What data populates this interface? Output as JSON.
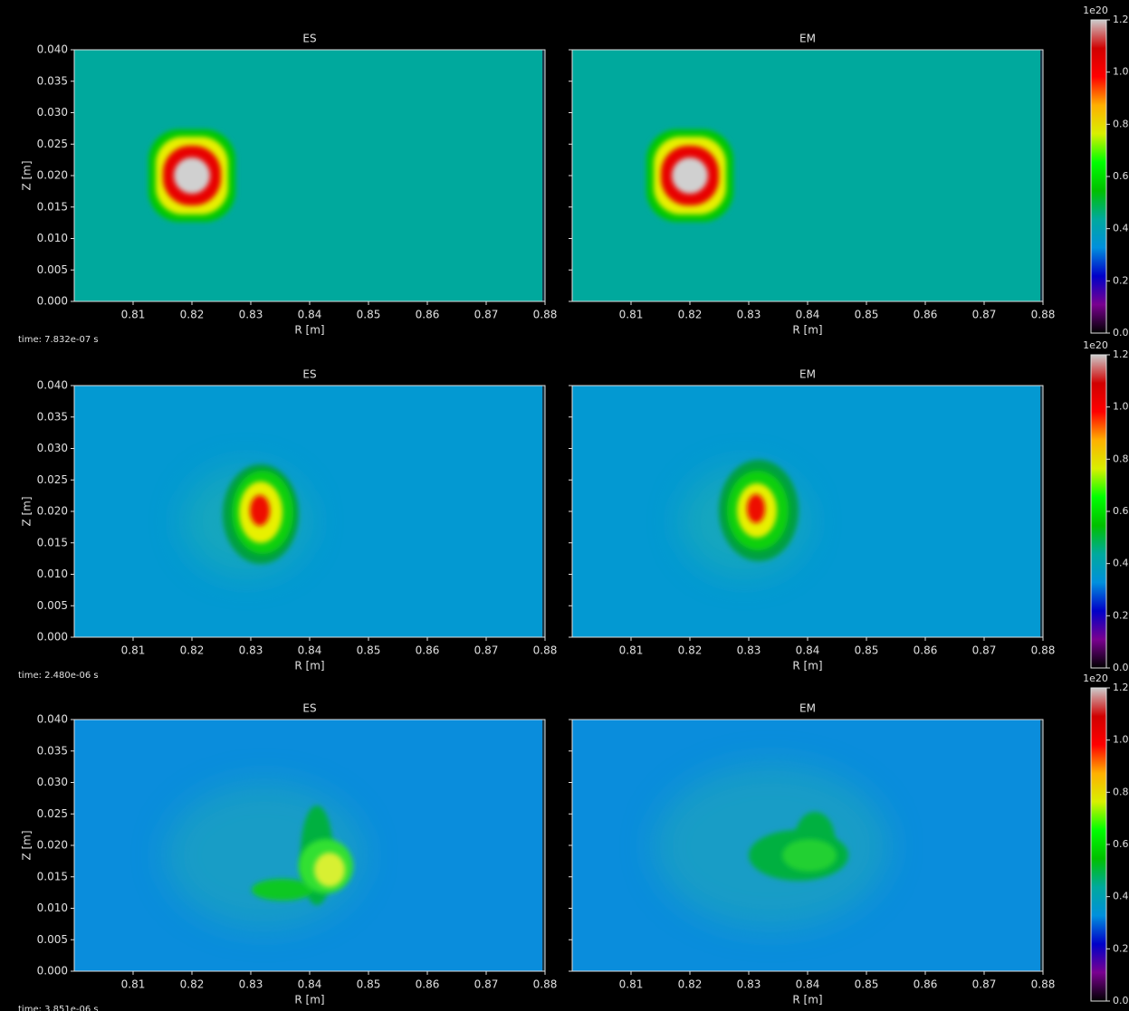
{
  "chart_data": [
    {
      "type": "heatmap",
      "title": "ES",
      "xlabel": "R [m]",
      "ylabel": "Z [m]",
      "annotation": "time: 7.832e-07 s",
      "background": "#00a99d",
      "xlim": [
        0.8,
        0.88
      ],
      "xticks": [
        0.81,
        0.82,
        0.83,
        0.84,
        0.85,
        0.86,
        0.87,
        0.88
      ],
      "ylim": [
        0,
        0.04
      ],
      "yticks": [
        {
          "value": 0,
          "label": "0.000"
        },
        {
          "value": 0.005,
          "label": "0.005"
        },
        {
          "value": 0.01,
          "label": "0.010"
        },
        {
          "value": 0.015,
          "label": "0.015"
        },
        {
          "value": 0.02,
          "label": "0.020"
        },
        {
          "value": 0.025,
          "label": "0.025"
        },
        {
          "value": 0.03,
          "label": "0.030"
        },
        {
          "value": 0.035,
          "label": "0.035"
        },
        {
          "value": 0.04,
          "label": "0.040"
        }
      ]
    },
    {
      "type": "heatmap",
      "title": "EM",
      "xlabel": "R [m]",
      "background": "#00a99d",
      "xlim": [
        0.8,
        0.88
      ],
      "xticks": [
        0.81,
        0.82,
        0.83,
        0.84,
        0.85,
        0.86,
        0.87,
        0.88
      ],
      "ylim": [
        0,
        0.04
      ],
      "yticks": [
        0,
        0.005,
        0.01,
        0.015,
        0.02,
        0.025,
        0.03,
        0.035,
        0.04
      ]
    },
    {
      "type": "heatmap",
      "title": "ES",
      "xlabel": "R [m]",
      "ylabel": "Z [m]",
      "annotation": "time: 2.480e-06 s",
      "background": "#0399d2",
      "xlim": [
        0.8,
        0.88
      ],
      "xticks": [
        0.81,
        0.82,
        0.83,
        0.84,
        0.85,
        0.86,
        0.87,
        0.88
      ],
      "ylim": [
        0,
        0.04
      ],
      "yticks": [
        {
          "value": 0,
          "label": "0.000"
        },
        {
          "value": 0.005,
          "label": "0.005"
        },
        {
          "value": 0.01,
          "label": "0.010"
        },
        {
          "value": 0.015,
          "label": "0.015"
        },
        {
          "value": 0.02,
          "label": "0.020"
        },
        {
          "value": 0.025,
          "label": "0.025"
        },
        {
          "value": 0.03,
          "label": "0.030"
        },
        {
          "value": 0.035,
          "label": "0.035"
        },
        {
          "value": 0.04,
          "label": "0.040"
        }
      ]
    },
    {
      "type": "heatmap",
      "title": "EM",
      "xlabel": "R [m]",
      "background": "#0399d2",
      "xlim": [
        0.8,
        0.88
      ],
      "xticks": [
        0.81,
        0.82,
        0.83,
        0.84,
        0.85,
        0.86,
        0.87,
        0.88
      ],
      "ylim": [
        0,
        0.04
      ],
      "yticks": [
        0,
        0.005,
        0.01,
        0.015,
        0.02,
        0.025,
        0.03,
        0.035,
        0.04
      ]
    },
    {
      "type": "heatmap",
      "title": "ES",
      "xlabel": "R [m]",
      "ylabel": "Z [m]",
      "annotation": "time: 3.851e-06 s",
      "background": "#0a8ddc",
      "xlim": [
        0.8,
        0.88
      ],
      "xticks": [
        0.81,
        0.82,
        0.83,
        0.84,
        0.85,
        0.86,
        0.87,
        0.88
      ],
      "ylim": [
        0,
        0.04
      ],
      "yticks": [
        {
          "value": 0,
          "label": "0.000"
        },
        {
          "value": 0.005,
          "label": "0.005"
        },
        {
          "value": 0.01,
          "label": "0.010"
        },
        {
          "value": 0.015,
          "label": "0.015"
        },
        {
          "value": 0.02,
          "label": "0.020"
        },
        {
          "value": 0.025,
          "label": "0.025"
        },
        {
          "value": 0.03,
          "label": "0.030"
        },
        {
          "value": 0.035,
          "label": "0.035"
        },
        {
          "value": 0.04,
          "label": "0.040"
        }
      ]
    },
    {
      "type": "heatmap",
      "title": "EM",
      "xlabel": "R [m]",
      "background": "#0a8ddc",
      "xlim": [
        0.8,
        0.88
      ],
      "xticks": [
        0.81,
        0.82,
        0.83,
        0.84,
        0.85,
        0.86,
        0.87,
        0.88
      ],
      "ylim": [
        0,
        0.04
      ],
      "yticks": [
        0,
        0.005,
        0.01,
        0.015,
        0.02,
        0.025,
        0.03,
        0.035,
        0.04
      ]
    },
    {
      "type": "colorbar",
      "offset_label": "1e20",
      "colors": [
        "#000000",
        "#7a0090",
        "#0000c8",
        "#0090dd",
        "#00a99d",
        "#00c000",
        "#00ff00",
        "#d8f000",
        "#ffb000",
        "#ff0000",
        "#d00000",
        "#cccccc"
      ],
      "ylim": [
        0,
        1.2
      ],
      "yticks": [
        {
          "value": 0,
          "label": "0.0"
        },
        {
          "value": 0.2,
          "label": "0.2"
        },
        {
          "value": 0.4,
          "label": "0.4"
        },
        {
          "value": 0.6,
          "label": "0.6"
        },
        {
          "value": 0.8,
          "label": "0.8"
        },
        {
          "value": 1.0,
          "label": "1.0"
        },
        {
          "value": 1.2,
          "label": "1.2"
        }
      ]
    },
    {
      "type": "colorbar",
      "offset_label": "1e20",
      "colors": [
        "#000000",
        "#7a0090",
        "#0000c8",
        "#0090dd",
        "#00a99d",
        "#00c000",
        "#00ff00",
        "#d8f000",
        "#ffb000",
        "#ff0000",
        "#d00000",
        "#cccccc"
      ],
      "ylim": [
        0,
        1.2
      ],
      "yticks": [
        {
          "value": 0,
          "label": "0.0"
        },
        {
          "value": 0.2,
          "label": "0.2"
        },
        {
          "value": 0.4,
          "label": "0.4"
        },
        {
          "value": 0.6,
          "label": "0.6"
        },
        {
          "value": 0.8,
          "label": "0.8"
        },
        {
          "value": 1.0,
          "label": "1.0"
        },
        {
          "value": 1.2,
          "label": "1.2"
        }
      ]
    },
    {
      "type": "colorbar",
      "offset_label": "1e20",
      "colors": [
        "#000000",
        "#7a0090",
        "#0000c8",
        "#0090dd",
        "#00a99d",
        "#00c000",
        "#00ff00",
        "#d8f000",
        "#ffb000",
        "#ff0000",
        "#d00000",
        "#cccccc"
      ],
      "ylim": [
        0,
        1.2
      ],
      "yticks": [
        {
          "value": 0,
          "label": "0.0"
        },
        {
          "value": 0.2,
          "label": "0.2"
        },
        {
          "value": 0.4,
          "label": "0.4"
        },
        {
          "value": 0.6,
          "label": "0.6"
        },
        {
          "value": 0.8,
          "label": "0.8"
        },
        {
          "value": 1.0,
          "label": "1.0"
        },
        {
          "value": 1.2,
          "label": "1.2"
        }
      ]
    }
  ]
}
